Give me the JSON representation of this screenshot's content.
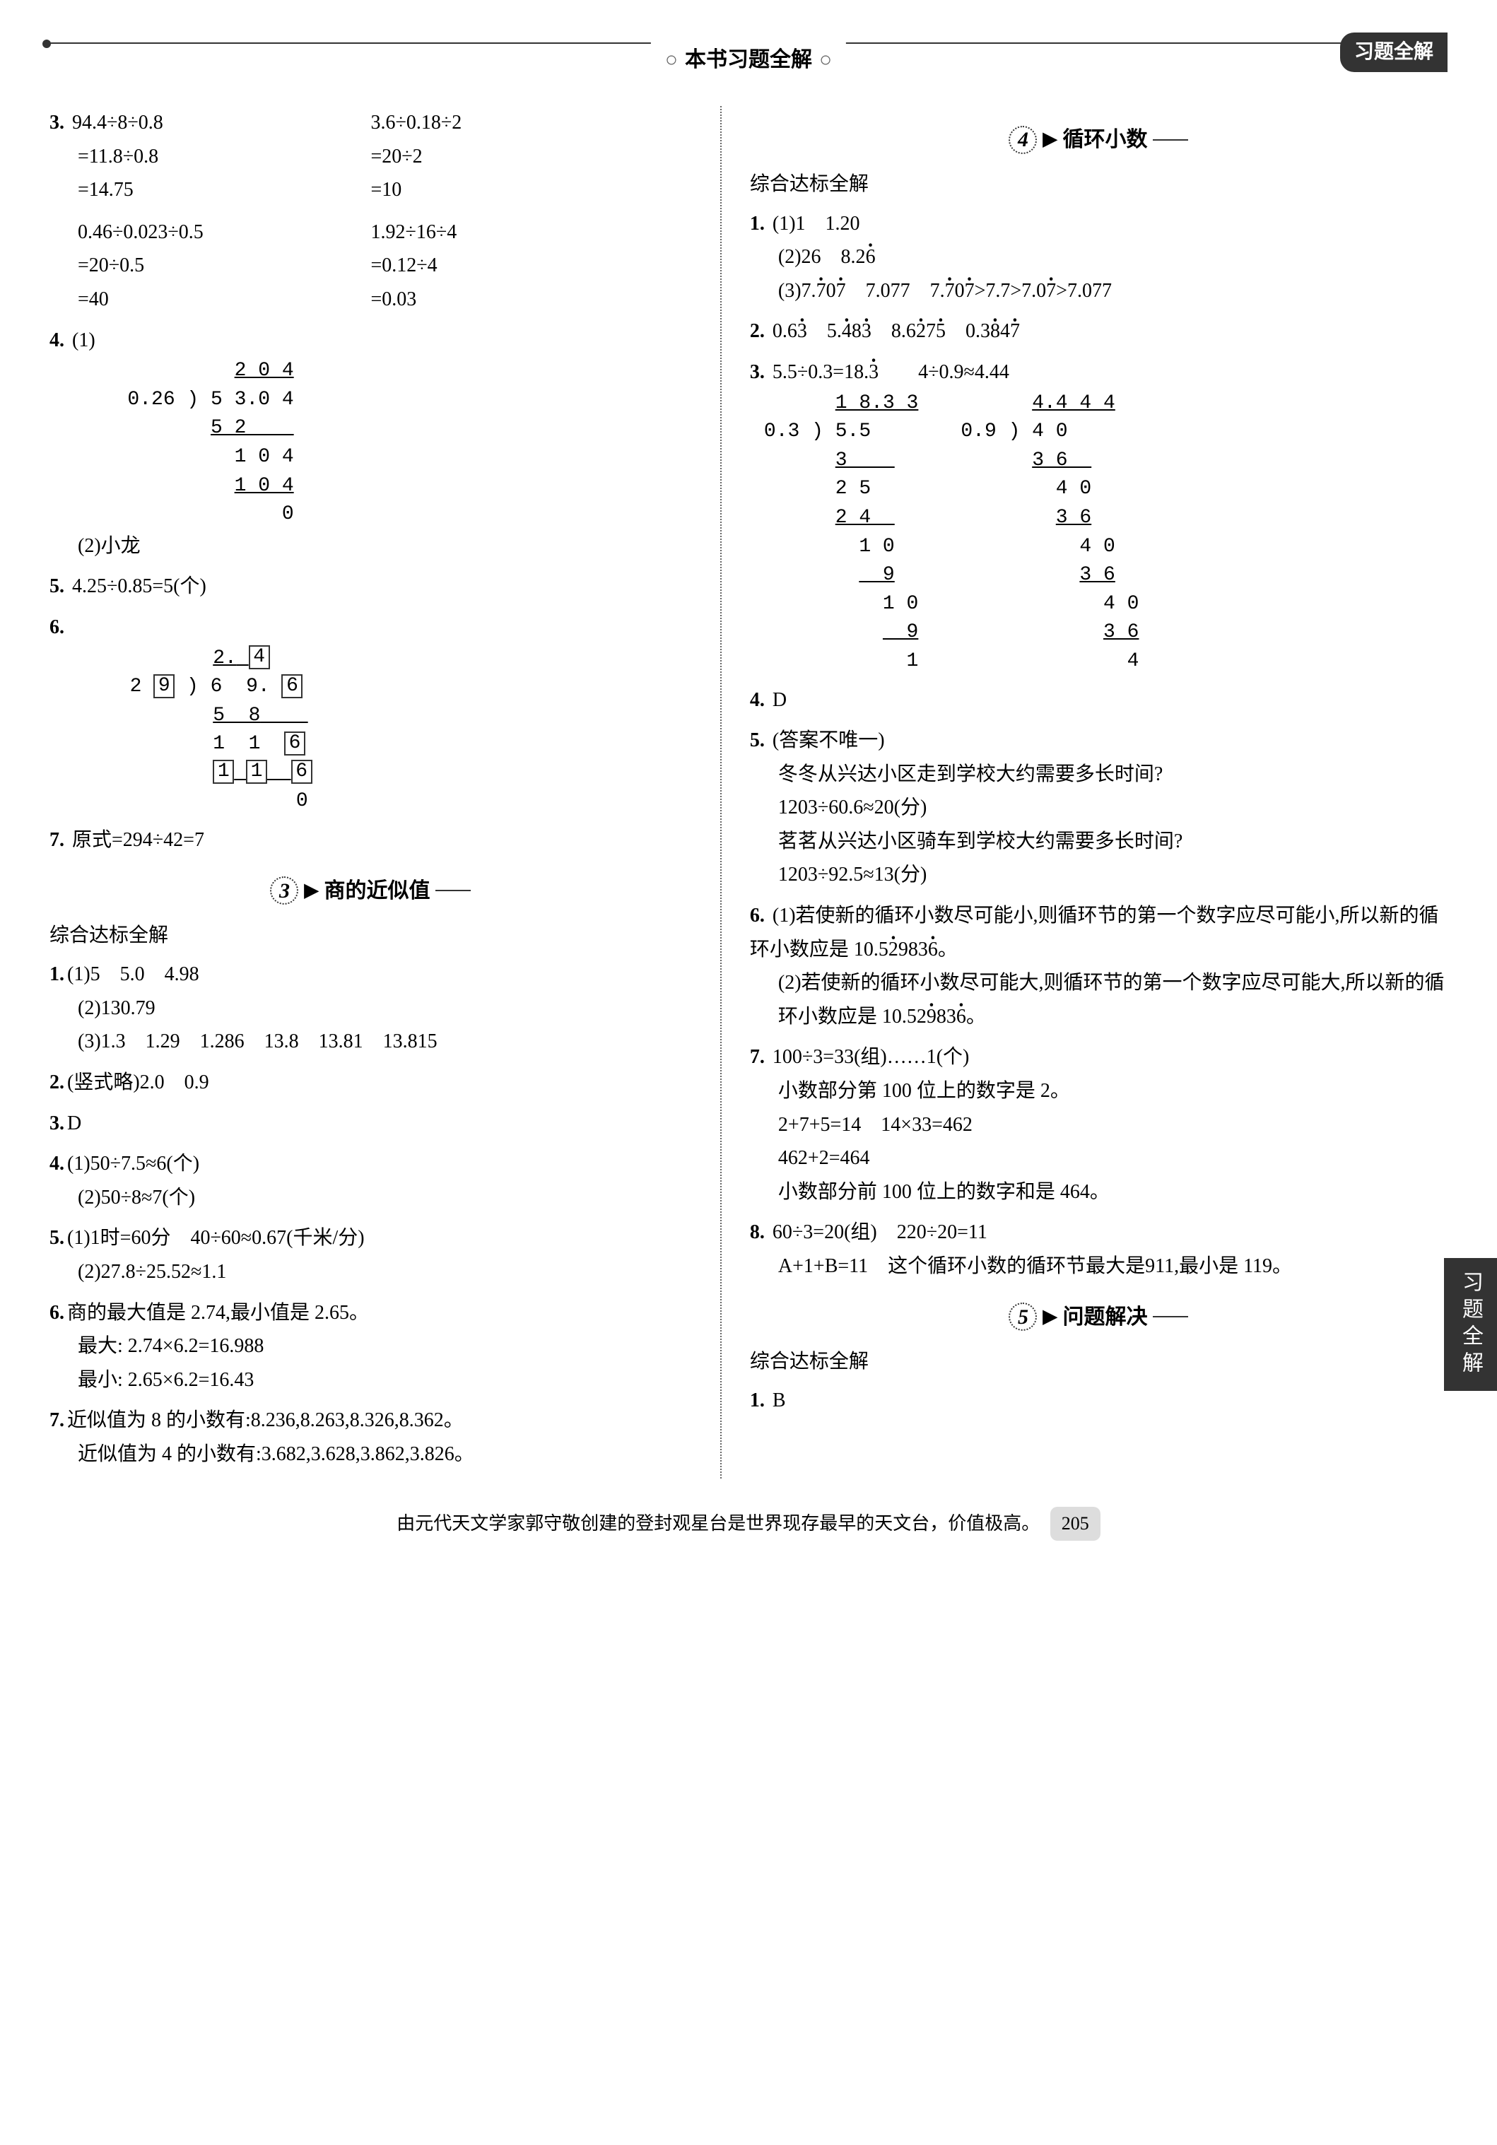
{
  "header": {
    "title": "本书习题全解",
    "badge": "习题全解"
  },
  "side_tab": "习题全解",
  "page_number": "205",
  "footer_text": "由元代天文学家郭守敬创建的登封观星台是世界现存最早的天文台，价值极高。",
  "left": {
    "q3": {
      "num": "3.",
      "col1": [
        "94.4÷8÷0.8",
        "=11.8÷0.8",
        "=14.75",
        "0.46÷0.023÷0.5",
        "=20÷0.5",
        "=40"
      ],
      "col2": [
        "3.6÷0.18÷2",
        "=20÷2",
        "=10",
        "1.92÷16÷4",
        "=0.12÷4",
        "=0.03"
      ]
    },
    "q4": {
      "num": "4.",
      "part1_label": "(1)",
      "div1_lines": [
        "         2 0 4",
        "0.26 ) 5 3.0 4",
        "       5 2",
        "      ─────",
        "         1 0 4",
        "         1 0 4",
        "        ─────",
        "             0"
      ],
      "part2": "(2)小龙"
    },
    "q5": {
      "num": "5.",
      "text": "4.25÷0.85=5(个)"
    },
    "q6": {
      "num": "6.",
      "div_struct": {
        "quotient_prefix": "2.",
        "quotient_box": "4",
        "divisor_prefix": "2",
        "divisor_box": "9",
        "dividend": "6  9.",
        "dividend_box": "6",
        "row2": "5  8",
        "row3_prefix": "1  1",
        "row3_box": "6",
        "row4_box1": "1",
        "row4_box2": "1",
        "row4_box3": "6",
        "row5": "0"
      }
    },
    "q7": {
      "num": "7.",
      "text": "原式=294÷42=7"
    },
    "section3": {
      "number": "3",
      "title": "商的近似值",
      "subhead": "综合达标全解",
      "items": [
        {
          "num": "1.",
          "lines": [
            "(1)5　5.0　4.98",
            "(2)130.79",
            "(3)1.3　1.29　1.286　13.8　13.81　13.815"
          ]
        },
        {
          "num": "2.",
          "lines": [
            "(竖式略)2.0　0.9"
          ]
        },
        {
          "num": "3.",
          "lines": [
            "D"
          ]
        },
        {
          "num": "4.",
          "lines": [
            "(1)50÷7.5≈6(个)",
            "(2)50÷8≈7(个)"
          ]
        },
        {
          "num": "5.",
          "lines": [
            "(1)1时=60分　40÷60≈0.67(千米/分)",
            "(2)27.8÷25.52≈1.1"
          ]
        },
        {
          "num": "6.",
          "lines": [
            "商的最大值是 2.74,最小值是 2.65。",
            "最大: 2.74×6.2=16.988",
            "最小: 2.65×6.2=16.43"
          ]
        },
        {
          "num": "7.",
          "lines": [
            "近似值为 8 的小数有:8.236,8.263,8.326,8.362。",
            "近似值为 4 的小数有:3.682,3.628,3.862,3.826。"
          ]
        }
      ]
    }
  },
  "right": {
    "section4": {
      "number": "4",
      "title": "循环小数",
      "subhead": "综合达标全解",
      "q1": {
        "num": "1.",
        "line1": "(1)1　1.20",
        "line2_prefix": "(2)26　8.2",
        "line2_dot": "6",
        "line3_a": "(3)7.",
        "line3_b": "70",
        "line3_c": "7",
        "line3_rest": "　7.077　7.",
        "line3_d": "70",
        "line3_e": "7",
        "line3_f": ">7.7>7.0",
        "line3_g": "7",
        "line3_h": ">7.077"
      },
      "q2": {
        "num": "2.",
        "text": "0.6",
        "d1": "3",
        "t2": "　5.",
        "d2a": "4",
        "t2b": "8",
        "d2b": "3",
        "t3": "　8.6",
        "d3a": "2",
        "t3b": "7",
        "d3b": "5",
        "t4": "　0.3",
        "d4a": "8",
        "t4b": "4",
        "d4b": "7"
      },
      "q3": {
        "num": "3.",
        "eq1_a": "5.5÷0.3=18.",
        "eq1_dot": "3",
        "eq2": "4÷0.9≈4.44",
        "div1_lines": [
          "      1 8.3 3",
          "0.3 ) 5.5",
          "      3",
          "     ───",
          "      2 5",
          "      2 4",
          "     ───",
          "        1 0",
          "          9",
          "       ───",
          "          1 0",
          "            9",
          "         ───",
          "            1"
        ],
        "div2_lines": [
          "      4.4 4 4",
          "0.9 ) 4 0",
          "      3 6",
          "     ────",
          "        4 0",
          "        3 6",
          "       ────",
          "          4 0",
          "          3 6",
          "         ────",
          "            4 0",
          "            3 6",
          "           ────",
          "              4"
        ]
      },
      "q4": {
        "num": "4.",
        "text": "D"
      },
      "q5": {
        "num": "5.",
        "note": "(答案不唯一)",
        "lines": [
          "冬冬从兴达小区走到学校大约需要多长时间?",
          "1203÷60.6≈20(分)",
          "茗茗从兴达小区骑车到学校大约需要多长时间?",
          "1203÷92.5≈13(分)"
        ]
      },
      "q6": {
        "num": "6.",
        "part1a": "(1)若使新的循环小数尽可能小,则循环节的第一个数字应尽可能小,所以新的循环小数应是 10.5",
        "part1_d1": "2",
        "part1b": "983",
        "part1_d2": "6",
        "part1c": "。",
        "part2a": "(2)若使新的循环小数尽可能大,则循环节的第一个数字应尽可能大,所以新的循环小数应是 10.52",
        "part2_d1": "9",
        "part2b": "83",
        "part2_d2": "6",
        "part2c": "。"
      },
      "q7": {
        "num": "7.",
        "lines": [
          "100÷3=33(组)……1(个)",
          "小数部分第 100 位上的数字是 2。",
          "2+7+5=14　14×33=462",
          "462+2=464",
          "小数部分前 100 位上的数字和是 464。"
        ]
      },
      "q8": {
        "num": "8.",
        "lines": [
          "60÷3=20(组)　220÷20=11",
          "A+1+B=11　这个循环小数的循环节最大是911,最小是 119。"
        ]
      }
    },
    "section5": {
      "number": "5",
      "title": "问题解决",
      "subhead": "综合达标全解",
      "q1": {
        "num": "1.",
        "text": "B"
      }
    }
  }
}
